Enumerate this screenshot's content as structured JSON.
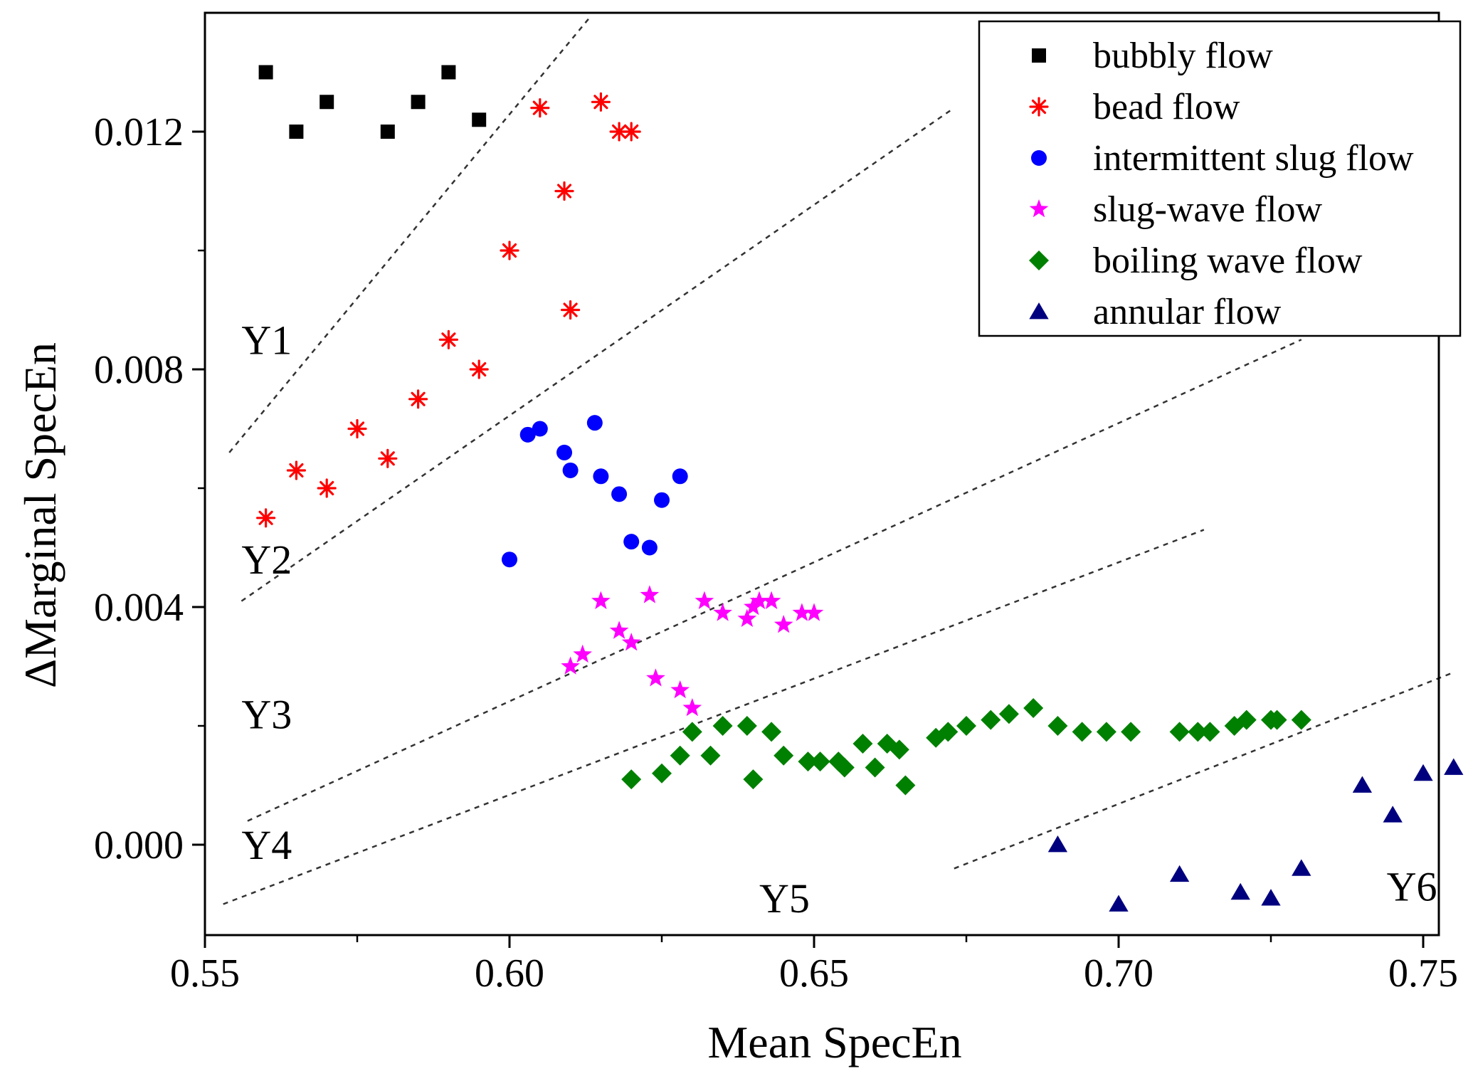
{
  "chart_data": {
    "type": "scatter",
    "xlabel": "Mean SpecEn",
    "ylabel": "ΔMarginal SpecEn",
    "xlim": [
      0.55,
      0.76
    ],
    "ylim": [
      -0.0015,
      0.014
    ],
    "x_ticks": [
      0.55,
      0.6,
      0.65,
      0.7,
      0.75
    ],
    "x_tick_labels": [
      "0.55",
      "0.60",
      "0.65",
      "0.70",
      "0.75"
    ],
    "y_ticks": [
      0.0,
      0.004,
      0.008,
      0.012
    ],
    "y_tick_labels": [
      "0.000",
      "0.004",
      "0.008",
      "0.012"
    ],
    "legend_position": "top-right",
    "grid": false,
    "series": [
      {
        "name": "bubbly flow",
        "marker": "square",
        "color": "#000000",
        "points": [
          [
            0.56,
            0.013
          ],
          [
            0.565,
            0.012
          ],
          [
            0.57,
            0.0125
          ],
          [
            0.58,
            0.012
          ],
          [
            0.585,
            0.0125
          ],
          [
            0.59,
            0.013
          ],
          [
            0.595,
            0.0122
          ]
        ]
      },
      {
        "name": "bead flow",
        "marker": "asterisk",
        "color": "#ff0000",
        "points": [
          [
            0.56,
            0.0055
          ],
          [
            0.565,
            0.0063
          ],
          [
            0.57,
            0.006
          ],
          [
            0.575,
            0.007
          ],
          [
            0.58,
            0.0065
          ],
          [
            0.585,
            0.0075
          ],
          [
            0.59,
            0.0085
          ],
          [
            0.595,
            0.008
          ],
          [
            0.6,
            0.01
          ],
          [
            0.605,
            0.0124
          ],
          [
            0.609,
            0.011
          ],
          [
            0.61,
            0.009
          ],
          [
            0.615,
            0.0125
          ],
          [
            0.618,
            0.012
          ],
          [
            0.62,
            0.012
          ]
        ]
      },
      {
        "name": "intermittent slug flow",
        "marker": "circle",
        "color": "#0000ff",
        "points": [
          [
            0.6,
            0.0048
          ],
          [
            0.603,
            0.0069
          ],
          [
            0.605,
            0.007
          ],
          [
            0.609,
            0.0066
          ],
          [
            0.61,
            0.0063
          ],
          [
            0.614,
            0.0071
          ],
          [
            0.615,
            0.0062
          ],
          [
            0.618,
            0.0059
          ],
          [
            0.62,
            0.0051
          ],
          [
            0.623,
            0.005
          ],
          [
            0.625,
            0.0058
          ],
          [
            0.628,
            0.0062
          ]
        ]
      },
      {
        "name": "slug-wave flow",
        "marker": "star",
        "color": "#ff00ff",
        "points": [
          [
            0.61,
            0.003
          ],
          [
            0.612,
            0.0032
          ],
          [
            0.615,
            0.0041
          ],
          [
            0.618,
            0.0036
          ],
          [
            0.62,
            0.0034
          ],
          [
            0.623,
            0.0042
          ],
          [
            0.624,
            0.0028
          ],
          [
            0.628,
            0.0026
          ],
          [
            0.63,
            0.0023
          ],
          [
            0.632,
            0.0041
          ],
          [
            0.635,
            0.0039
          ],
          [
            0.639,
            0.0038
          ],
          [
            0.64,
            0.004
          ],
          [
            0.641,
            0.0041
          ],
          [
            0.643,
            0.0041
          ],
          [
            0.645,
            0.0037
          ],
          [
            0.648,
            0.0039
          ],
          [
            0.65,
            0.0039
          ]
        ]
      },
      {
        "name": "boiling wave flow",
        "marker": "diamond",
        "color": "#008000",
        "points": [
          [
            0.62,
            0.0011
          ],
          [
            0.625,
            0.0012
          ],
          [
            0.628,
            0.0015
          ],
          [
            0.63,
            0.0019
          ],
          [
            0.633,
            0.0015
          ],
          [
            0.635,
            0.002
          ],
          [
            0.639,
            0.002
          ],
          [
            0.64,
            0.0011
          ],
          [
            0.643,
            0.0019
          ],
          [
            0.645,
            0.0015
          ],
          [
            0.649,
            0.0014
          ],
          [
            0.651,
            0.0014
          ],
          [
            0.654,
            0.0014
          ],
          [
            0.655,
            0.0013
          ],
          [
            0.658,
            0.0017
          ],
          [
            0.66,
            0.0013
          ],
          [
            0.662,
            0.0017
          ],
          [
            0.664,
            0.0016
          ],
          [
            0.665,
            0.001
          ],
          [
            0.67,
            0.0018
          ],
          [
            0.672,
            0.0019
          ],
          [
            0.675,
            0.002
          ],
          [
            0.679,
            0.0021
          ],
          [
            0.682,
            0.0022
          ],
          [
            0.686,
            0.0023
          ],
          [
            0.69,
            0.002
          ],
          [
            0.694,
            0.0019
          ],
          [
            0.698,
            0.0019
          ],
          [
            0.702,
            0.0019
          ],
          [
            0.71,
            0.0019
          ],
          [
            0.713,
            0.0019
          ],
          [
            0.715,
            0.0019
          ],
          [
            0.719,
            0.002
          ],
          [
            0.721,
            0.0021
          ],
          [
            0.725,
            0.0021
          ],
          [
            0.726,
            0.0021
          ],
          [
            0.73,
            0.0021
          ]
        ]
      },
      {
        "name": "annular flow",
        "marker": "triangle",
        "color": "#00007f",
        "points": [
          [
            0.69,
            0.0
          ],
          [
            0.7,
            -0.001
          ],
          [
            0.71,
            -0.0005
          ],
          [
            0.72,
            -0.0008
          ],
          [
            0.725,
            -0.0009
          ],
          [
            0.73,
            -0.0004
          ],
          [
            0.74,
            0.001
          ],
          [
            0.745,
            0.0005
          ],
          [
            0.75,
            0.0012
          ],
          [
            0.755,
            0.0013
          ]
        ]
      }
    ],
    "boundary_lines": [
      {
        "name": "Y1-Y2 boundary",
        "from": [
          0.554,
          0.0066
        ],
        "to": [
          0.613,
          0.0139
        ]
      },
      {
        "name": "Y2-Y3 boundary",
        "from": [
          0.556,
          0.0041
        ],
        "to": [
          0.673,
          0.0124
        ]
      },
      {
        "name": "Y3-Y4 boundary",
        "from": [
          0.557,
          0.0004
        ],
        "to": [
          0.73,
          0.0085
        ]
      },
      {
        "name": "Y4-Y5 boundary",
        "from": [
          0.553,
          -0.001
        ],
        "to": [
          0.714,
          0.0053
        ]
      },
      {
        "name": "Y5-Y6 boundary",
        "from": [
          0.673,
          -0.0004
        ],
        "to": [
          0.755,
          0.0029
        ]
      }
    ],
    "region_labels": [
      {
        "text": "Y1",
        "x": 0.556,
        "y": 0.0085
      },
      {
        "text": "Y2",
        "x": 0.556,
        "y": 0.0048
      },
      {
        "text": "Y3",
        "x": 0.556,
        "y": 0.0022
      },
      {
        "text": "Y4",
        "x": 0.556,
        "y": 0.0
      },
      {
        "text": "Y5",
        "x": 0.641,
        "y": -0.0009
      },
      {
        "text": "Y6",
        "x": 0.744,
        "y": -0.0007
      }
    ]
  }
}
